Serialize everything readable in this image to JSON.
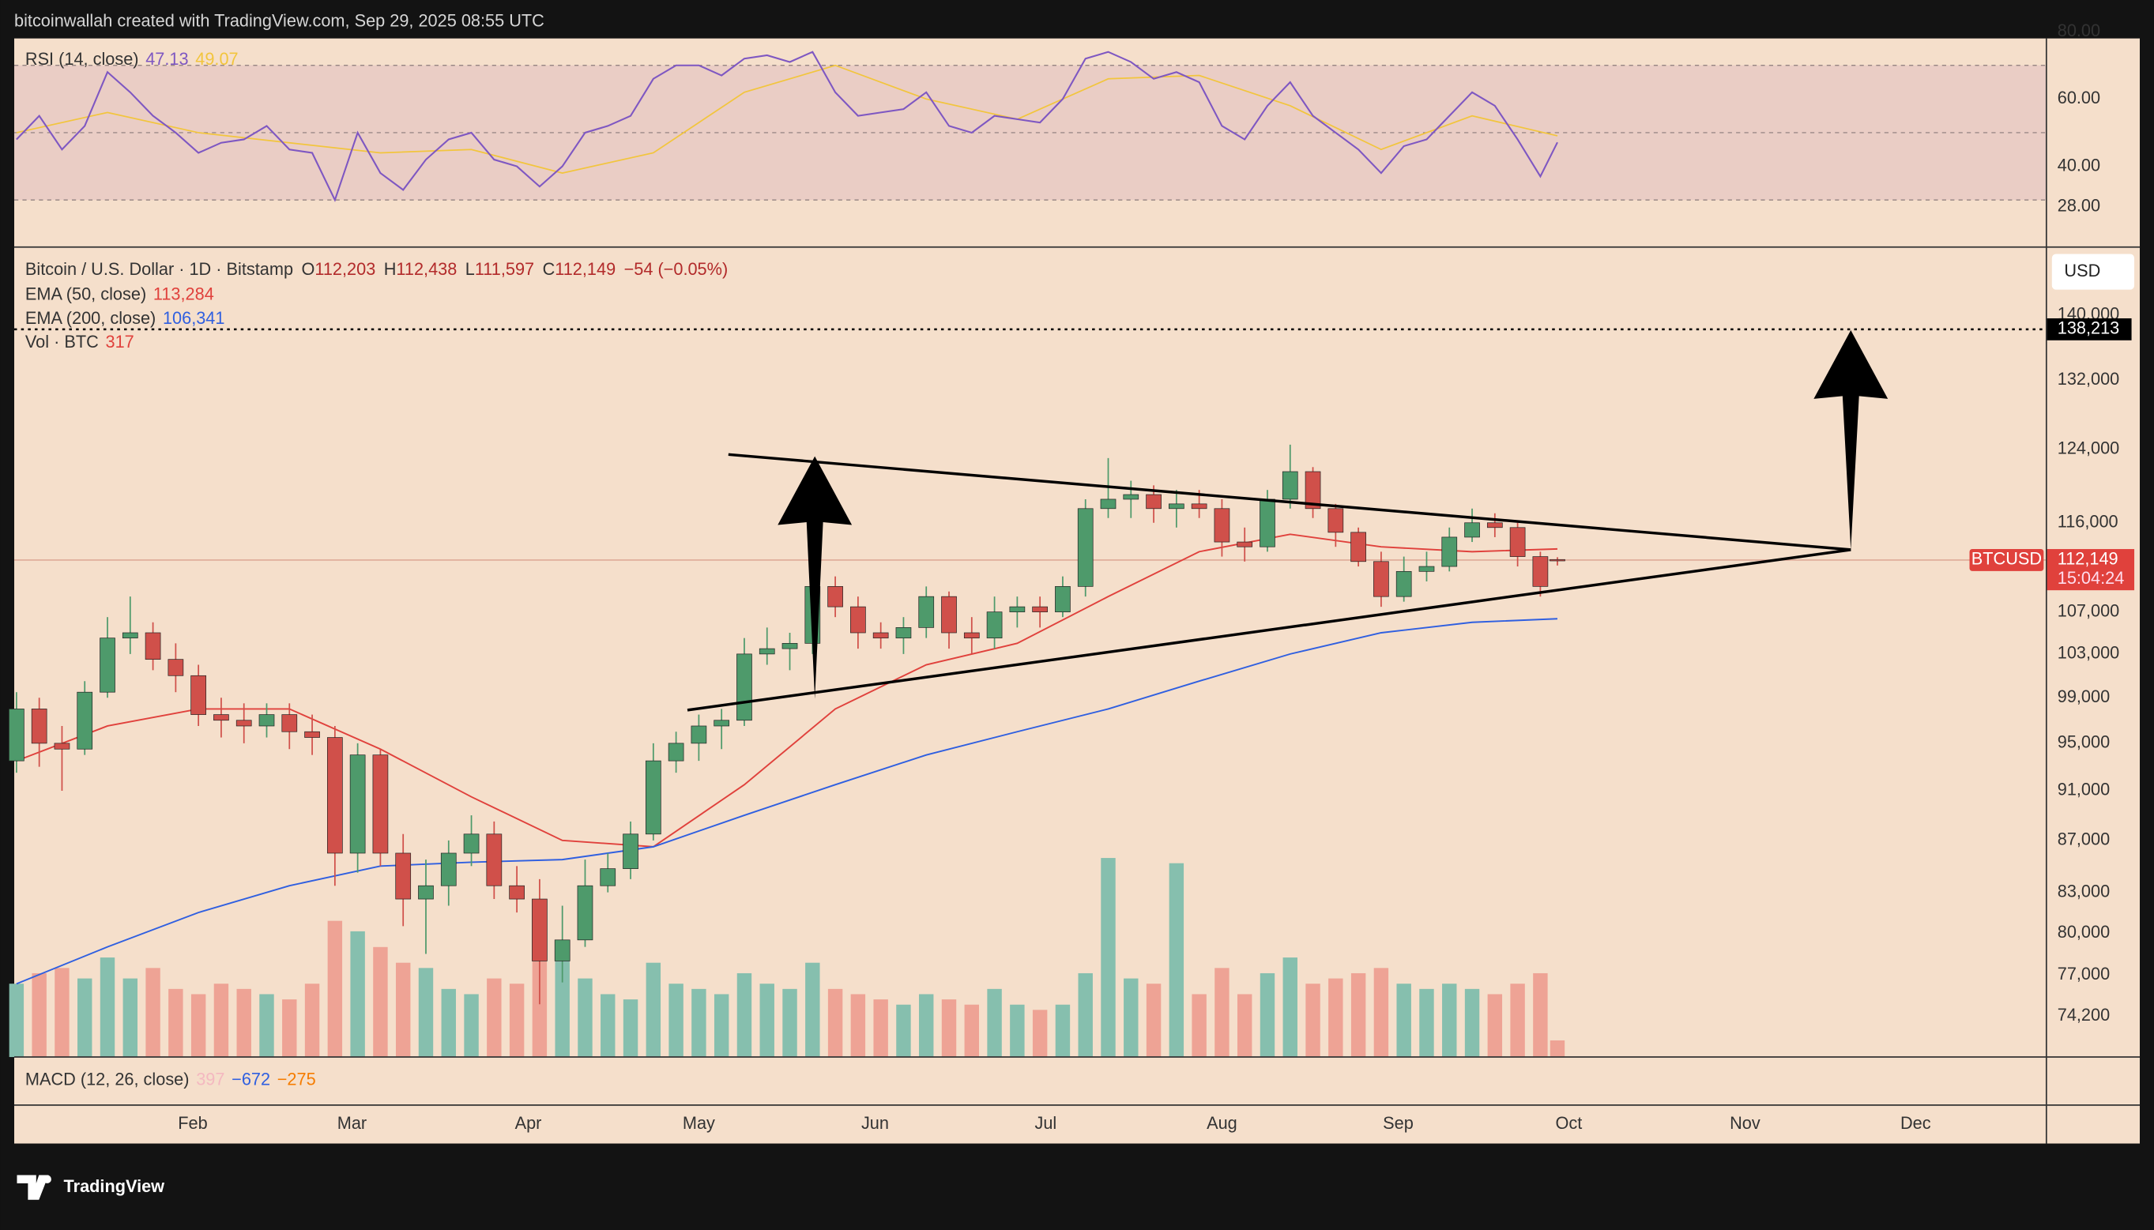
{
  "header": {
    "credit": "bitcoinwallah created with TradingView.com, Sep 29, 2025 08:55 UTC",
    "brand": "TradingView"
  },
  "chart_data": {
    "type": "candlestick",
    "legend": {
      "symbol": "Bitcoin / U.S. Dollar · 1D · Bitstamp",
      "ohlc": [
        {
          "label": "O",
          "value": "112,203"
        },
        {
          "label": "H",
          "value": "112,438"
        },
        {
          "label": "L",
          "value": "111,597"
        },
        {
          "label": "C",
          "value": "112,149"
        }
      ],
      "change": "−54 (−0.05%)",
      "currency": "USD",
      "ticker": "BTCUSD",
      "last_label": "112,149",
      "countdown": "15:04:24",
      "volume_name": "Vol · BTC",
      "volume_last": "317"
    },
    "x": [
      0,
      4,
      8,
      12,
      16,
      20,
      24,
      28,
      32,
      36,
      40,
      44,
      48,
      52,
      56,
      60,
      64,
      68,
      72,
      76,
      80,
      84,
      88,
      92,
      96,
      100,
      104,
      108,
      112,
      116,
      120,
      124,
      128,
      132,
      136,
      140,
      144,
      148,
      152,
      156,
      160,
      164,
      168,
      172,
      176,
      180,
      184,
      188,
      192,
      196,
      200,
      204,
      208,
      212,
      216,
      220,
      224,
      228,
      232,
      236,
      240,
      244,
      248,
      252,
      256,
      260,
      264,
      268,
      271
    ],
    "open": [
      93500,
      98000,
      95000,
      94500,
      99500,
      104500,
      105000,
      102500,
      101000,
      97500,
      97000,
      96500,
      97500,
      96000,
      95500,
      86000,
      94000,
      86000,
      82500,
      83500,
      86000,
      87500,
      83500,
      82500,
      78000,
      79500,
      83500,
      84800,
      87500,
      93500,
      95000,
      96500,
      97000,
      103000,
      103500,
      104000,
      109500,
      107500,
      105000,
      104500,
      105500,
      108500,
      105000,
      104500,
      107000,
      107500,
      107000,
      109500,
      117500,
      118500,
      119000,
      117500,
      118000,
      117500,
      114000,
      113500,
      118500,
      121500,
      117500,
      115000,
      112000,
      108500,
      111000,
      111500,
      114500,
      116000,
      115500,
      112500,
      112203
    ],
    "high": [
      99500,
      99000,
      96500,
      100500,
      106500,
      108500,
      106000,
      104000,
      102000,
      99000,
      98500,
      98500,
      98500,
      97500,
      96500,
      95000,
      94500,
      87500,
      85500,
      87000,
      89000,
      88500,
      85000,
      84000,
      82000,
      85500,
      86000,
      88500,
      95000,
      96000,
      97500,
      98000,
      104500,
      105500,
      105000,
      111500,
      110500,
      108500,
      106000,
      106500,
      109500,
      109000,
      106500,
      108500,
      108500,
      108500,
      110500,
      118500,
      123000,
      120500,
      120000,
      119500,
      119500,
      118500,
      115500,
      119500,
      124500,
      122000,
      118000,
      115500,
      113000,
      112500,
      113000,
      115500,
      117500,
      117000,
      116000,
      113000,
      112438
    ],
    "low": [
      92500,
      93000,
      91000,
      94000,
      99000,
      103000,
      101500,
      99500,
      96500,
      95500,
      95000,
      95500,
      94500,
      94000,
      83500,
      84500,
      85000,
      80500,
      78500,
      82000,
      85000,
      82500,
      81500,
      75000,
      76500,
      79000,
      83000,
      84000,
      87000,
      92500,
      93500,
      94500,
      96500,
      102000,
      101500,
      103000,
      106500,
      103500,
      103500,
      103000,
      104500,
      103500,
      103000,
      103500,
      105500,
      105500,
      106500,
      108500,
      116500,
      116500,
      116000,
      115500,
      116500,
      112500,
      112000,
      113000,
      117500,
      116500,
      113500,
      111500,
      107500,
      108000,
      110000,
      111000,
      114000,
      114500,
      111500,
      108500,
      111597
    ],
    "close": [
      98000,
      95000,
      94500,
      99500,
      104500,
      105000,
      102500,
      101000,
      97500,
      97000,
      96500,
      97500,
      96000,
      95500,
      86000,
      94000,
      86000,
      82500,
      83500,
      86000,
      87500,
      83500,
      82500,
      78000,
      79500,
      83500,
      84800,
      87500,
      93500,
      95000,
      96500,
      97000,
      103000,
      103500,
      104000,
      109500,
      107500,
      105000,
      104500,
      105500,
      108500,
      105000,
      104500,
      107000,
      107500,
      107000,
      109500,
      117500,
      118500,
      119000,
      117500,
      118000,
      117500,
      114000,
      113500,
      118500,
      121500,
      117500,
      115000,
      112000,
      108500,
      111000,
      111500,
      114500,
      116000,
      115500,
      112500,
      109500,
      112149
    ],
    "volume": [
      1400,
      1600,
      1700,
      1500,
      1900,
      1500,
      1700,
      1300,
      1200,
      1400,
      1300,
      1200,
      1100,
      1400,
      2600,
      2400,
      2100,
      1800,
      1700,
      1300,
      1200,
      1500,
      1400,
      2200,
      2000,
      1500,
      1200,
      1100,
      1800,
      1400,
      1300,
      1200,
      1600,
      1400,
      1300,
      1800,
      1300,
      1200,
      1100,
      1000,
      1200,
      1100,
      1000,
      1300,
      1000,
      900,
      1000,
      1600,
      3800,
      1500,
      1400,
      3700,
      1200,
      1700,
      1200,
      1600,
      1900,
      1400,
      1500,
      1600,
      1700,
      1400,
      1300,
      1400,
      1300,
      1200,
      1400,
      1600,
      317
    ],
    "colors": {
      "up": "#4e9a6b",
      "down": "#d0504a",
      "volume_up": "#86bfae",
      "volume_down": "#eea395"
    },
    "series": [
      {
        "name": "EMA (50, close)",
        "last_label": "113,284",
        "color": "#e0413c",
        "x": [
          0,
          16,
          32,
          48,
          64,
          80,
          96,
          112,
          128,
          144,
          160,
          176,
          192,
          208,
          224,
          240,
          256,
          271
        ],
        "values": [
          93500,
          96500,
          98000,
          98000,
          94500,
          90500,
          87000,
          86500,
          91500,
          98000,
          102000,
          104000,
          108500,
          113000,
          114800,
          113500,
          113000,
          113284
        ]
      },
      {
        "name": "EMA (200, close)",
        "last_label": "106,341",
        "color": "#2f5fe0",
        "x": [
          0,
          16,
          32,
          48,
          64,
          80,
          96,
          112,
          128,
          144,
          160,
          176,
          192,
          208,
          224,
          240,
          256,
          271
        ],
        "values": [
          76400,
          79000,
          81500,
          83500,
          85000,
          85300,
          85500,
          86500,
          89000,
          91500,
          94000,
          96000,
          98000,
          100500,
          103000,
          105000,
          106000,
          106341
        ]
      }
    ],
    "ylim": [
      71500,
      148900
    ],
    "log_scale": true,
    "yticks": [
      {
        "value": 140000,
        "label": "140,000"
      },
      {
        "value": 132000,
        "label": "132,000"
      },
      {
        "value": 124000,
        "label": "124,000"
      },
      {
        "value": 116000,
        "label": "116,000"
      },
      {
        "value": 107000,
        "label": "107,000"
      },
      {
        "value": 103000,
        "label": "103,000"
      },
      {
        "value": 99000,
        "label": "99,000"
      },
      {
        "value": 95000,
        "label": "95,000"
      },
      {
        "value": 91000,
        "label": "91,000"
      },
      {
        "value": 87000,
        "label": "87,000"
      },
      {
        "value": 83000,
        "label": "83,000"
      },
      {
        "value": 80000,
        "label": "80,000"
      },
      {
        "value": 77000,
        "label": "77,000"
      },
      {
        "value": 74200,
        "label": "74,200"
      }
    ],
    "xlim": [
      -0.4,
      357
    ],
    "xticks": [
      {
        "value": 31,
        "label": "Feb"
      },
      {
        "value": 59,
        "label": "Mar"
      },
      {
        "value": 90,
        "label": "Apr"
      },
      {
        "value": 120,
        "label": "May"
      },
      {
        "value": 151,
        "label": "Jun"
      },
      {
        "value": 181,
        "label": "Jul"
      },
      {
        "value": 212,
        "label": "Aug"
      },
      {
        "value": 243,
        "label": "Sep"
      },
      {
        "value": 273,
        "label": "Oct"
      },
      {
        "value": 304,
        "label": "Nov"
      },
      {
        "value": 334,
        "label": "Dec"
      }
    ],
    "target": {
      "value": 138213,
      "label": "138,213"
    },
    "trendlines": [
      {
        "x": [
          125.2,
          322.6
        ],
        "y": [
          123400,
          113200
        ]
      },
      {
        "x": [
          118,
          322.6
        ],
        "y": [
          97900,
          113200
        ]
      }
    ],
    "arrows": [
      {
        "x": 140.4,
        "from": 98900,
        "to": 123200
      },
      {
        "x": 322.6,
        "from": 113200,
        "to": 138100
      }
    ],
    "rsi": {
      "name": "RSI (14, close)",
      "last_label": "47.13",
      "ma_label": "49.07",
      "color": "#7e57c2",
      "ma_color": "#f2c53d",
      "values": [
        48,
        55,
        45,
        52,
        68,
        62,
        55,
        50,
        44,
        47,
        48,
        52,
        45,
        44,
        30,
        50,
        38,
        33,
        42,
        48,
        50,
        42,
        40,
        34,
        40,
        50,
        52,
        55,
        66,
        70,
        70,
        67,
        72,
        73,
        71,
        74,
        62,
        55,
        56,
        57,
        62,
        52,
        50,
        55,
        54,
        53,
        60,
        72,
        74,
        71,
        66,
        68,
        65,
        52,
        48,
        58,
        65,
        55,
        50,
        45,
        38,
        46,
        48,
        55,
        62,
        58,
        48,
        37,
        47.13
      ],
      "ma_x": [
        0,
        16,
        32,
        48,
        64,
        80,
        96,
        112,
        128,
        144,
        160,
        176,
        192,
        208,
        224,
        240,
        256,
        271
      ],
      "ma_values": [
        50,
        56,
        50,
        47,
        44,
        45,
        38,
        44,
        62,
        70,
        60,
        54,
        66,
        67,
        58,
        45,
        55,
        49.07
      ],
      "ylim": [
        16,
        78
      ],
      "band": [
        30,
        70
      ],
      "mid": 50,
      "yticks": [
        {
          "value": 80,
          "label": "80.00"
        },
        {
          "value": 60,
          "label": "60.00"
        },
        {
          "value": 40,
          "label": "40.00"
        },
        {
          "value": 28,
          "label": "28.00"
        }
      ]
    },
    "macd": {
      "name": "MACD (12, 26, close)",
      "values": [
        {
          "label": "397",
          "color": "#f4b8c0"
        },
        {
          "label": "−672",
          "color": "#2f5fe0"
        },
        {
          "label": "−275",
          "color": "#f57c00"
        }
      ]
    }
  }
}
